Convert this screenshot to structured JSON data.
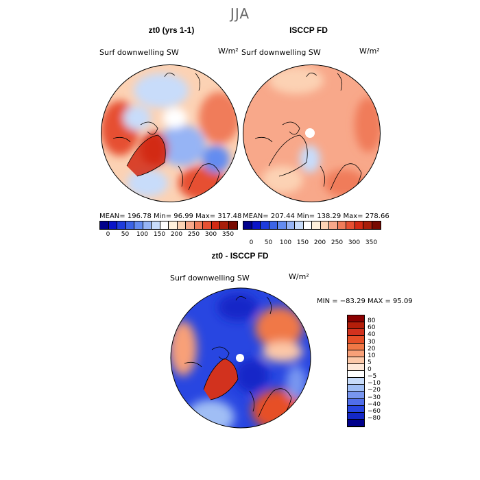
{
  "season": "JJA",
  "panel1": {
    "title": "zt0 (yrs 1-1)",
    "variable": "Surf downwelling SW",
    "units": "W/m²",
    "stats": "MEAN= 196.78  Min=  96.99  Max= 317.48"
  },
  "panel2": {
    "title": "ISCCP FD",
    "variable": "Surf downwelling SW",
    "units": "W/m²",
    "stats": "MEAN= 207.44  Min= 138.29  Max= 278.66"
  },
  "panel3": {
    "title": "zt0 - ISCCP FD",
    "variable": "Surf downwelling SW",
    "units": "W/m²",
    "stats": "MIN = −83.29 MAX =  95.09"
  },
  "colorbar_top": {
    "labels": [
      "0",
      "50",
      "100",
      "150",
      "200",
      "250",
      "300",
      "350"
    ],
    "colors": [
      "#00008b",
      "#0a14c8",
      "#1e3cdc",
      "#3c64e6",
      "#648cf0",
      "#96b4f5",
      "#c8dcfa",
      "#ffffff",
      "#fff0dc",
      "#fcd2b4",
      "#f8a88a",
      "#f07c5a",
      "#e65032",
      "#d22a14",
      "#a81e0a",
      "#780a00"
    ]
  },
  "colorbar_diff": {
    "labels": [
      "80",
      "60",
      "40",
      "30",
      "20",
      "10",
      "5",
      "0",
      "−5",
      "−10",
      "−20",
      "−30",
      "−40",
      "−60",
      "−80"
    ],
    "colors": [
      "#8b0000",
      "#b41e0a",
      "#d2321e",
      "#e65028",
      "#f07846",
      "#f8a078",
      "#fcc8a8",
      "#ffe8d8",
      "#ffffff",
      "#c8dcfa",
      "#a0bef5",
      "#7896f0",
      "#506eeb",
      "#2846e1",
      "#1428c8",
      "#00008b"
    ]
  },
  "colors": {
    "ocean_blue": "#3c64e6",
    "land_red": "#e65032",
    "pale_orange": "#f8a88a"
  }
}
